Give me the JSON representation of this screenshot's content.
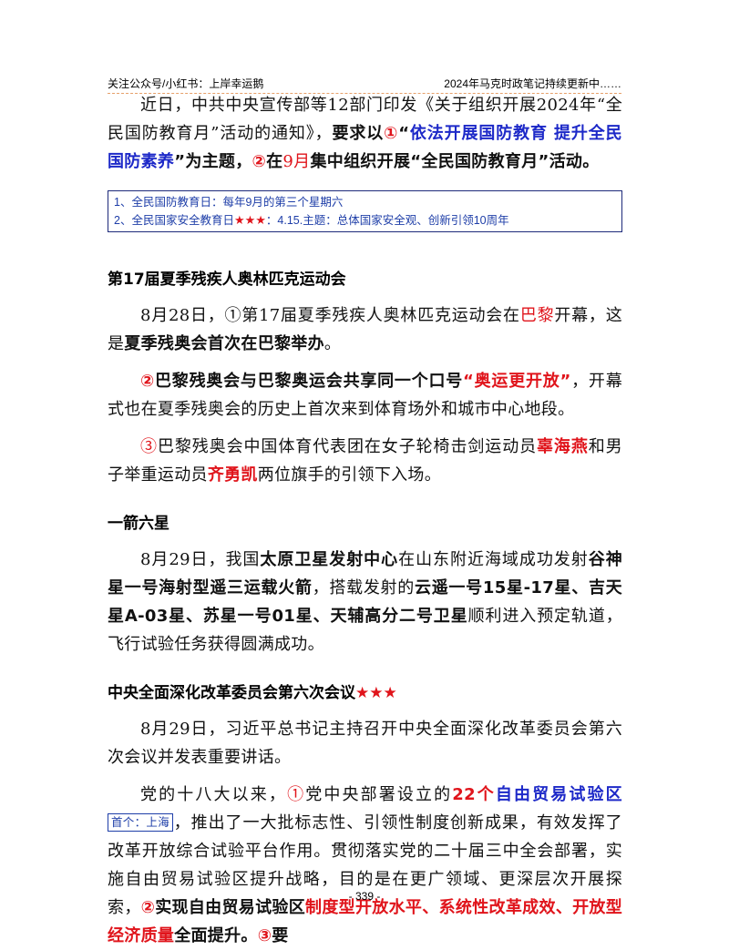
{
  "header": {
    "left": "关注公众号/小红书：上岸幸运鹅",
    "right": "2024年马克时政笔记持续更新中……"
  },
  "intro": {
    "t1": "近日，中共中央宣传部等12部门印发《关于组织开展2024年“全民国防教育月”活动的通知》，",
    "t2": "要求以",
    "t3": "①",
    "t4": "“",
    "t5": "依法开展国防教育  提升全民国防素养",
    "t6": "”为主题，",
    "t7": "②",
    "t8": "在",
    "t9": "9月",
    "t10": "集中组织开展“全民国防教育月”活动。"
  },
  "note": {
    "line1": "1、全民国防教育日：每年9月的第三个星期六",
    "line2_a": "2、全民国家安全教育日",
    "line2_stars": "★★★",
    "line2_b": "：4.15.主题：总体国家安全观、创新引领10周年"
  },
  "s1": {
    "title": "第17届夏季残疾人奥林匹克运动会",
    "p1_a": "8月28日，",
    "p1_b": "①第17届夏季残疾人奥林匹克运动会在",
    "p1_c": "巴黎",
    "p1_d": "开幕，这是",
    "p1_e": "夏季残奥会首次在巴黎举办",
    "p1_f": "。",
    "p2_a": "②",
    "p2_b": "巴黎残奥会与巴黎奥运会共享同一个口号",
    "p2_c": "“奥运更开放”",
    "p2_d": "，开幕式也在夏季残奥会的历史上首次来到体育场外和城市中心地段。",
    "p3_a": "③",
    "p3_b": "巴黎残奥会中国体育代表团在女子轮椅击剑运动员",
    "p3_c": "辜海燕",
    "p3_d": "和男子举重运动员",
    "p3_e": "齐勇凯",
    "p3_f": "两位旗手的引领下入场。"
  },
  "s2": {
    "title": "一箭六星",
    "p_a": "8月29日，我国",
    "p_b": "太原卫星发射中心",
    "p_c": "在山东附近海域成功发射",
    "p_d": "谷神星一号海射型遥三运载火箭",
    "p_e": "，搭载发射的",
    "p_f": "云遥一号15星-17星、吉天星A-03星、苏星一号01星、天辅高分二号卫星",
    "p_g": "顺利进入预定轨道，飞行试验任务获得圆满成功。"
  },
  "s3": {
    "title": "中央全面深化改革委员会第六次会议",
    "stars": "★★★",
    "p1": "8月29日，习近平总书记主持召开中央全面深化改革委员会第六次会议并发表重要讲话。",
    "p2_a": "党的十八大以来，",
    "p2_b": "①",
    "p2_c": "党中央部署设立的",
    "p2_d": "22个",
    "p2_e": "自由贸易试验区",
    "p2_tag": "首个：上海",
    "p2_f": "，推出了一大批标志性、引领性制度创新成果，有效发挥了改革开放综合试验平台作用。贯彻落实党的二十届三中全会部署，实施自由贸易试验区提升战略，目的是在更广领域、更深层次开展探索，",
    "p2_g": "②",
    "p2_h": "实现自由贸易试验区",
    "p2_i": "制度型开放水平、系统性改革成效、开放型经济质量",
    "p2_j": "全面提升。",
    "p2_k": "③",
    "p2_l": "要"
  },
  "footer": {
    "page": "- 339 -"
  }
}
